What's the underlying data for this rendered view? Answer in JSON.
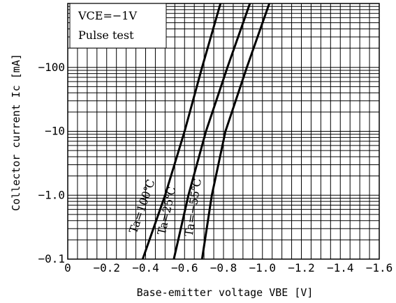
{
  "chart_data": {
    "type": "line",
    "xlabel": "Base-emitter voltage VBE [V]",
    "ylabel": "Collector current Ic [mA]",
    "x_ticks": [
      0,
      -0.2,
      -0.4,
      -0.6,
      -0.8,
      -1.0,
      -1.2,
      -1.4,
      -1.6
    ],
    "x_tick_labels": [
      "0",
      "−0.2",
      "−0.4",
      "−0.6",
      "−0.8",
      "−1.0",
      "−1.2",
      "−1.4",
      "−1.6"
    ],
    "y_ticks": [
      -0.1,
      -1.0,
      -10,
      -100
    ],
    "y_tick_labels": [
      "−0.1",
      "−1.0",
      "−10",
      "−100"
    ],
    "xlim": [
      0,
      -1.6
    ],
    "ylim": [
      -0.1,
      -1000
    ],
    "y_scale": "log",
    "grid": true,
    "legend": {
      "position": "top-left",
      "lines": [
        "VCE=−1V",
        "Pulse test"
      ]
    },
    "series": [
      {
        "name": "Ta=100℃",
        "x": [
          -0.385,
          -0.5,
          -0.6,
          -0.69
        ],
        "y": [
          -0.1,
          -1.0,
          -10,
          -100
        ]
      },
      {
        "name": "Ta=25℃",
        "x": [
          -0.545,
          -0.62,
          -0.71,
          -0.82
        ],
        "y": [
          -0.1,
          -1.0,
          -10,
          -100
        ]
      },
      {
        "name": "Ta=−55℃",
        "x": [
          -0.69,
          -0.74,
          -0.81,
          -0.92
        ],
        "y": [
          -0.1,
          -1.0,
          -10,
          -100
        ]
      }
    ]
  }
}
